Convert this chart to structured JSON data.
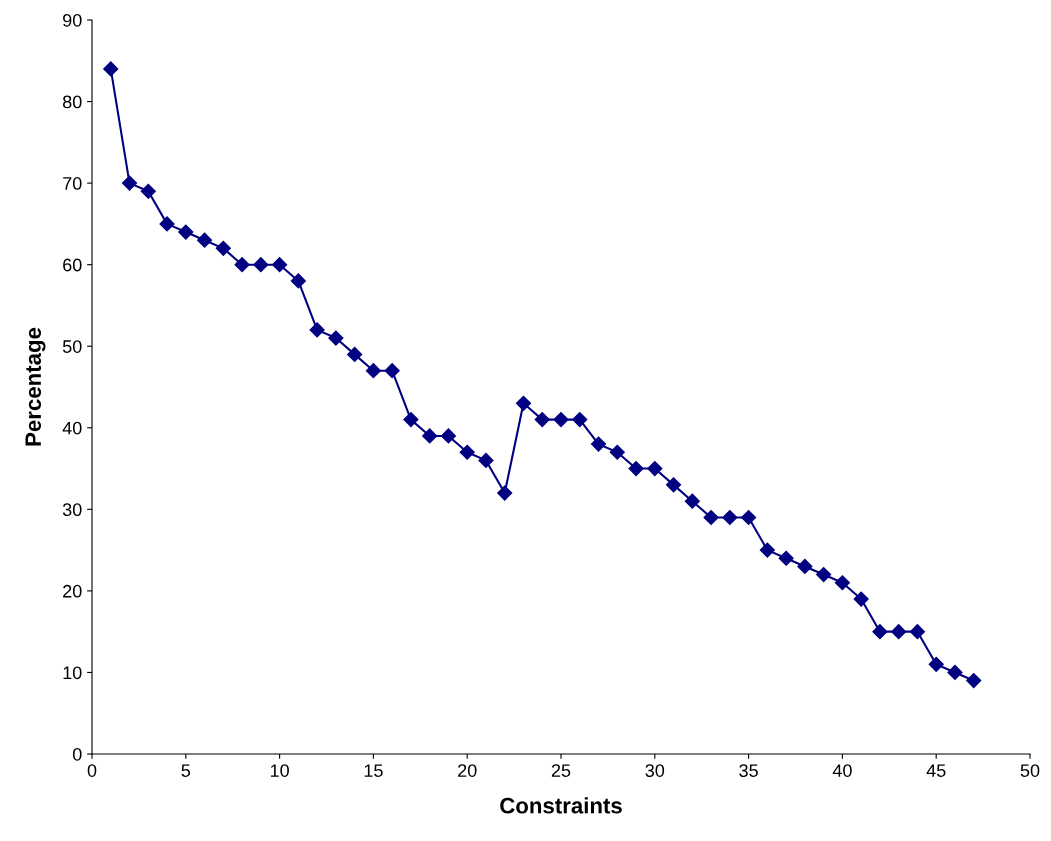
{
  "chart_data": {
    "type": "line",
    "xlabel": "Constraints",
    "ylabel": "Percentage",
    "x": [
      1,
      2,
      3,
      4,
      5,
      6,
      7,
      8,
      9,
      10,
      11,
      12,
      13,
      14,
      15,
      16,
      17,
      18,
      19,
      20,
      21,
      22,
      23,
      24,
      25,
      26,
      27,
      28,
      29,
      30,
      31,
      32,
      33,
      34,
      35,
      36,
      37,
      38,
      39,
      40,
      41,
      42,
      43,
      44,
      45,
      46,
      47
    ],
    "series": [
      {
        "color": "#000080",
        "values": [
          84,
          70,
          69,
          65,
          64,
          63,
          62,
          60,
          60,
          60,
          58,
          52,
          51,
          49,
          47,
          47,
          41,
          39,
          39,
          37,
          36,
          32,
          43,
          41,
          41,
          41,
          38,
          37,
          35,
          35,
          33,
          31,
          29,
          29,
          29,
          25,
          24,
          23,
          22,
          21,
          19,
          15,
          15,
          15,
          11,
          10,
          9
        ]
      }
    ],
    "xlim": [
      0,
      50
    ],
    "xticks": [
      0,
      5,
      10,
      15,
      20,
      25,
      30,
      35,
      40,
      45,
      50
    ],
    "ylim": [
      0,
      90
    ],
    "yticks": [
      0,
      10,
      20,
      30,
      40,
      50,
      60,
      70,
      80,
      90
    ],
    "marker": "diamond",
    "line_style": "solid",
    "grid": false,
    "legend": false
  }
}
